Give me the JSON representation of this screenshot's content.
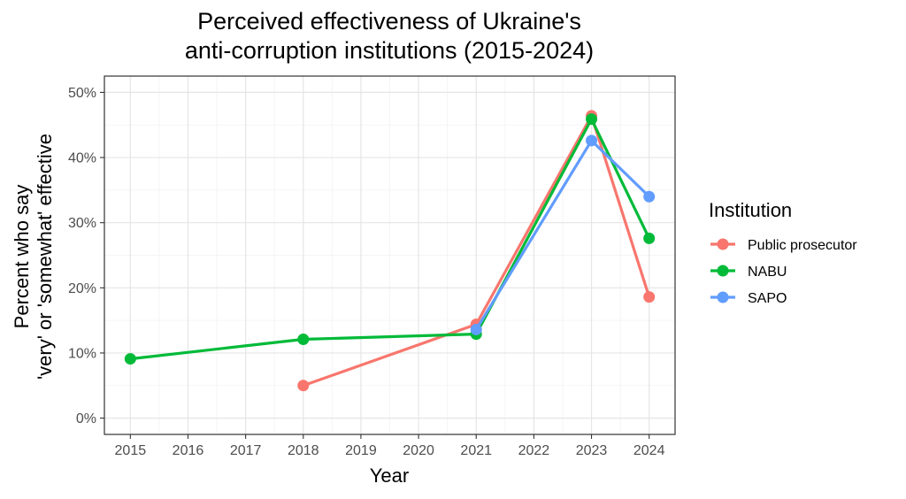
{
  "chart_data": {
    "type": "line",
    "title_lines": [
      "Perceived effectiveness of Ukraine's",
      "anti-corruption institutions (2015-2024)"
    ],
    "xlabel": "Year",
    "ylabel_lines": [
      "Percent who say",
      "'very' or 'somewhat' effective"
    ],
    "xlim": [
      2014.55,
      2024.45
    ],
    "ylim": [
      -2.5,
      52.5
    ],
    "x_ticks": [
      2015,
      2016,
      2017,
      2018,
      2019,
      2020,
      2021,
      2022,
      2023,
      2024
    ],
    "y_ticks": [
      0,
      10,
      20,
      30,
      40,
      50
    ],
    "y_tick_labels": [
      "0%",
      "10%",
      "20%",
      "30%",
      "40%",
      "50%"
    ],
    "grid": true,
    "legend_title": "Institution",
    "legend_position": "right",
    "series": [
      {
        "name": "Public prosecutor",
        "color": "#F8766D",
        "x": [
          2018,
          2021,
          2023,
          2024
        ],
        "y": [
          5.0,
          14.4,
          46.4,
          18.6
        ]
      },
      {
        "name": "NABU",
        "color": "#00BA38",
        "x": [
          2015,
          2018,
          2021,
          2023,
          2024
        ],
        "y": [
          9.1,
          12.1,
          12.9,
          45.9,
          27.6
        ]
      },
      {
        "name": "SAPO",
        "color": "#619CFF",
        "x": [
          2021,
          2023,
          2024
        ],
        "y": [
          13.6,
          42.6,
          34.0
        ]
      }
    ]
  }
}
